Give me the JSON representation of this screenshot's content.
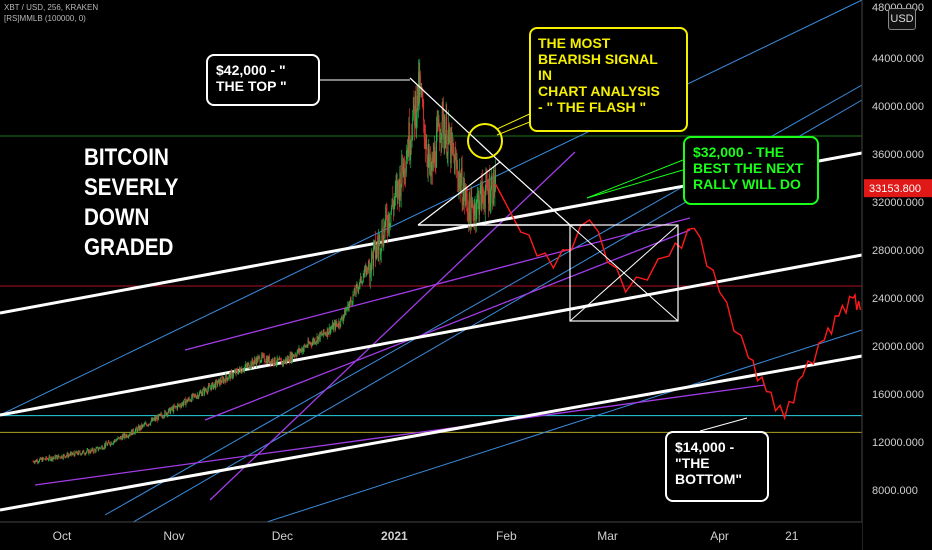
{
  "header": {
    "symbol_line": "XBT / USD, 256, KRAKEN",
    "indicator_line": "[RS]MMLB (100000, 0)",
    "currency_badge": "USD"
  },
  "title": {
    "lines": [
      "BITCOIN",
      "SEVERLY",
      "DOWN",
      "GRADED"
    ]
  },
  "callouts": {
    "top": [
      "$42,000 - \"",
      "THE TOP \""
    ],
    "flash": [
      "THE MOST",
      "BEARISH SIGNAL",
      "IN",
      "CHART ANALYSIS",
      "- \" THE FLASH \""
    ],
    "rally": [
      "$32,000 - THE",
      "BEST THE NEXT",
      "RALLY WILL DO"
    ],
    "bottom": [
      "$14,000 -",
      "\"THE",
      "BOTTOM\""
    ]
  },
  "colors": {
    "background": "#000000",
    "candle_up": "#22b34a",
    "candle_down": "#e03030",
    "projection": "#ff1a1a",
    "channel_white": "#ffffff",
    "trend_blue": "#3a8ee0",
    "trend_purple": "#a23ce8",
    "horizontal_green": "#1a7a1a",
    "horizontal_red": "#b01020",
    "horizontal_cyan": "#28d0e0",
    "horizontal_yellow": "#b0a020",
    "flash_circle": "#f5f000",
    "price_tag": "#e01818"
  },
  "chart_data": {
    "type": "candlestick",
    "symbol": "XBT / USD",
    "timeframe": "256",
    "exchange": "KRAKEN",
    "x_tick_labels": [
      "Oct",
      "Nov",
      "Dec",
      "2021",
      "Feb",
      "Mar",
      "Apr",
      "21"
    ],
    "y_tick_labels": [
      8000,
      12000,
      16000,
      20000,
      24000,
      28000,
      32000,
      36000,
      40000,
      44000,
      48000
    ],
    "ylim": [
      6000,
      49000
    ],
    "current_price_label": "33153.800",
    "top_axis_label": "48000.000",
    "price_path": [
      {
        "date": "2020-09-23",
        "price": 10400
      },
      {
        "date": "2020-10-10",
        "price": 11300
      },
      {
        "date": "2020-10-21",
        "price": 12900
      },
      {
        "date": "2020-11-05",
        "price": 15500
      },
      {
        "date": "2020-11-25",
        "price": 19000
      },
      {
        "date": "2020-12-01",
        "price": 18600
      },
      {
        "date": "2020-12-17",
        "price": 22000
      },
      {
        "date": "2020-12-27",
        "price": 28000
      },
      {
        "date": "2021-01-02",
        "price": 33000
      },
      {
        "date": "2021-01-08",
        "price": 41500
      },
      {
        "date": "2021-01-11",
        "price": 34000
      },
      {
        "date": "2021-01-14",
        "price": 39000
      },
      {
        "date": "2021-01-22",
        "price": 31000
      },
      {
        "date": "2021-01-25",
        "price": 32500
      },
      {
        "date": "2021-01-29",
        "price": 33500
      }
    ],
    "projection_path": [
      {
        "date": "2021-01-29",
        "price": 33500
      },
      {
        "date": "2021-02-05",
        "price": 29500
      },
      {
        "date": "2021-02-14",
        "price": 26500
      },
      {
        "date": "2021-02-24",
        "price": 30500
      },
      {
        "date": "2021-03-06",
        "price": 24500
      },
      {
        "date": "2021-03-18",
        "price": 27500
      },
      {
        "date": "2021-03-25",
        "price": 29800
      },
      {
        "date": "2021-04-01",
        "price": 24500
      },
      {
        "date": "2021-04-09",
        "price": 19000
      },
      {
        "date": "2021-04-14",
        "price": 16200
      },
      {
        "date": "2021-04-19",
        "price": 14000
      },
      {
        "date": "2021-04-24",
        "price": 17500
      },
      {
        "date": "2021-04-30",
        "price": 20500
      },
      {
        "date": "2021-05-04",
        "price": 22500
      },
      {
        "date": "2021-05-08",
        "price": 24000
      },
      {
        "date": "2021-05-10",
        "price": 23000
      }
    ],
    "horizontal_levels": [
      {
        "price": 37500,
        "color": "#1a7a1a"
      },
      {
        "price": 25000,
        "color": "#b01020"
      },
      {
        "price": 14200,
        "color": "#28d0e0"
      },
      {
        "price": 12800,
        "color": "#b0a020"
      }
    ],
    "grid": false
  }
}
